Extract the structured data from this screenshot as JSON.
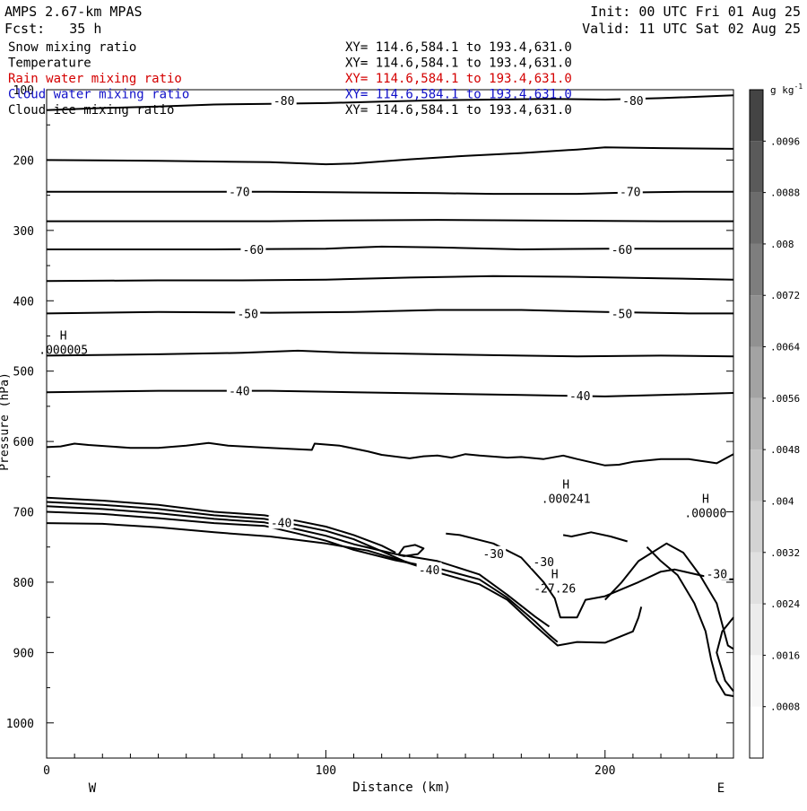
{
  "header": {
    "model": "AMPS 2.67-km MPAS",
    "forecast": "Fcst:   35 h",
    "init": "Init: 00 UTC Fri 01 Aug 25",
    "valid": "Valid: 11 UTC Sat 02 Aug 25"
  },
  "legend": {
    "fields": [
      {
        "name": "Snow mixing ratio",
        "xy": "XY= 114.6,584.1 to 193.4,631.0",
        "color": "#000000"
      },
      {
        "name": "Temperature",
        "xy": "XY= 114.6,584.1 to 193.4,631.0",
        "color": "#000000"
      },
      {
        "name": "Rain water mixing ratio",
        "xy": "XY= 114.6,584.1 to 193.4,631.0",
        "color": "#d40000"
      },
      {
        "name": "Cloud water mixing ratio",
        "xy": "XY= 114.6,584.1 to 193.4,631.0",
        "color": "#1010c8"
      },
      {
        "name": "Cloud ice mixing ratio",
        "xy": "XY= 114.6,584.1 to 193.4,631.0",
        "color": "#000000"
      }
    ]
  },
  "colorbar": {
    "unit_base": "g kg",
    "unit_exp": "-1",
    "labels": [
      ".0096",
      ".0088",
      ".008",
      ".0072",
      ".0064",
      ".0056",
      ".0048",
      ".004",
      ".0032",
      ".0024",
      ".0016",
      ".0008"
    ],
    "values": [
      0.0096,
      0.0088,
      0.008,
      0.0072,
      0.0064,
      0.0056,
      0.0048,
      0.004,
      0.0032,
      0.0024,
      0.0016,
      0.0008
    ],
    "range": [
      0,
      0.0104
    ],
    "bin_colors": [
      "#ffffff",
      "#f7f7f7",
      "#ececec",
      "#e0e0e0",
      "#d3d3d3",
      "#c5c5c5",
      "#b5b5b5",
      "#a3a3a3",
      "#919191",
      "#7e7e7e",
      "#6c6c6c",
      "#5a5a5a",
      "#444444"
    ]
  },
  "chart_data": {
    "type": "contour",
    "xlabel": "Distance (km)",
    "ylabel": "Pressure (hPa)",
    "xlim": [
      0,
      246
    ],
    "ylim": [
      1050,
      100
    ],
    "xticks": [
      0,
      100,
      200
    ],
    "yticks": [
      100,
      200,
      300,
      400,
      500,
      600,
      700,
      800,
      900,
      1000
    ],
    "x_end_labels": {
      "left": "W",
      "right": "E"
    },
    "contour_labels": [
      {
        "text": "-80",
        "x": 85,
        "p": 115
      },
      {
        "text": "-80",
        "x": 210,
        "p": 115
      },
      {
        "text": "-70",
        "x": 69,
        "p": 245
      },
      {
        "text": "-70",
        "x": 209,
        "p": 245
      },
      {
        "text": "-60",
        "x": 74,
        "p": 327
      },
      {
        "text": "-60",
        "x": 206,
        "p": 327
      },
      {
        "text": "-50",
        "x": 72,
        "p": 418
      },
      {
        "text": "-50",
        "x": 206,
        "p": 418
      },
      {
        "text": "-40",
        "x": 69,
        "p": 528
      },
      {
        "text": "-40",
        "x": 191,
        "p": 535
      },
      {
        "text": "-40",
        "x": 84,
        "p": 715
      },
      {
        "text": "-40",
        "x": 137,
        "p": 782
      },
      {
        "text": "-30",
        "x": 160,
        "p": 759
      },
      {
        "text": "-30",
        "x": 178,
        "p": 771
      },
      {
        "text": "-30",
        "x": 240,
        "p": 788
      }
    ],
    "extrema": [
      {
        "marker": "H",
        "value": ".000005",
        "x": 6,
        "p": 478
      },
      {
        "marker": "H",
        "value": ".000241",
        "x": 186,
        "p": 690
      },
      {
        "marker": "H",
        "value": "-27.26",
        "x": 182,
        "p": 817
      },
      {
        "marker": "H",
        "value": ".00000",
        "x": 236,
        "p": 710
      }
    ],
    "isotherms": [
      {
        "level": -80,
        "points": [
          [
            0,
            129
          ],
          [
            20,
            126
          ],
          [
            40,
            124
          ],
          [
            60,
            121
          ],
          [
            80,
            120
          ],
          [
            100,
            119
          ],
          [
            120,
            117
          ],
          [
            140,
            115
          ],
          [
            160,
            114
          ],
          [
            180,
            113
          ],
          [
            200,
            114
          ],
          [
            220,
            112
          ],
          [
            246,
            108
          ]
        ]
      },
      {
        "level": -75,
        "points": [
          [
            0,
            200
          ],
          [
            40,
            201
          ],
          [
            80,
            203
          ],
          [
            100,
            206
          ],
          [
            110,
            205
          ],
          [
            130,
            199
          ],
          [
            150,
            194
          ],
          [
            170,
            190
          ],
          [
            190,
            185
          ],
          [
            200,
            182
          ],
          [
            220,
            183
          ],
          [
            246,
            184
          ]
        ]
      },
      {
        "level": -70,
        "points": [
          [
            0,
            245
          ],
          [
            40,
            245
          ],
          [
            80,
            245
          ],
          [
            110,
            246
          ],
          [
            140,
            247
          ],
          [
            160,
            248
          ],
          [
            190,
            248
          ],
          [
            210,
            246
          ],
          [
            230,
            245
          ],
          [
            246,
            245
          ]
        ]
      },
      {
        "level": -65,
        "points": [
          [
            0,
            287
          ],
          [
            40,
            287
          ],
          [
            80,
            287
          ],
          [
            100,
            286
          ],
          [
            140,
            285
          ],
          [
            180,
            286
          ],
          [
            220,
            287
          ],
          [
            246,
            287
          ]
        ]
      },
      {
        "level": -60,
        "points": [
          [
            0,
            327
          ],
          [
            60,
            327
          ],
          [
            100,
            326
          ],
          [
            120,
            323
          ],
          [
            140,
            324
          ],
          [
            170,
            327
          ],
          [
            200,
            326
          ],
          [
            246,
            326
          ]
        ]
      },
      {
        "level": -55,
        "points": [
          [
            0,
            372
          ],
          [
            40,
            371
          ],
          [
            70,
            371
          ],
          [
            100,
            370
          ],
          [
            130,
            367
          ],
          [
            160,
            365
          ],
          [
            190,
            366
          ],
          [
            220,
            368
          ],
          [
            246,
            370
          ]
        ]
      },
      {
        "level": -50,
        "points": [
          [
            0,
            418
          ],
          [
            40,
            416
          ],
          [
            80,
            417
          ],
          [
            110,
            416
          ],
          [
            140,
            413
          ],
          [
            170,
            413
          ],
          [
            200,
            416
          ],
          [
            230,
            418
          ],
          [
            246,
            418
          ]
        ]
      },
      {
        "level": -45,
        "points": [
          [
            0,
            478
          ],
          [
            40,
            476
          ],
          [
            70,
            474
          ],
          [
            90,
            471
          ],
          [
            110,
            474
          ],
          [
            140,
            476
          ],
          [
            170,
            478
          ],
          [
            190,
            479
          ],
          [
            220,
            478
          ],
          [
            246,
            479
          ]
        ]
      },
      {
        "level": -40,
        "points": [
          [
            0,
            530
          ],
          [
            40,
            528
          ],
          [
            80,
            528
          ],
          [
            110,
            530
          ],
          [
            140,
            532
          ],
          [
            170,
            534
          ],
          [
            200,
            536
          ],
          [
            220,
            534
          ],
          [
            246,
            531
          ]
        ]
      },
      {
        "level": -35,
        "points": [
          [
            0,
            608
          ],
          [
            5,
            607
          ],
          [
            10,
            603
          ],
          [
            15,
            605
          ],
          [
            30,
            609
          ],
          [
            40,
            609
          ],
          [
            50,
            606
          ],
          [
            58,
            602
          ],
          [
            65,
            606
          ],
          [
            80,
            609
          ],
          [
            95,
            612
          ],
          [
            96,
            603
          ],
          [
            105,
            606
          ],
          [
            115,
            614
          ],
          [
            120,
            619
          ],
          [
            130,
            624
          ],
          [
            135,
            621
          ],
          [
            140,
            620
          ],
          [
            145,
            623
          ],
          [
            150,
            618
          ],
          [
            155,
            620
          ],
          [
            165,
            623
          ],
          [
            170,
            622
          ],
          [
            178,
            625
          ],
          [
            185,
            620
          ],
          [
            190,
            625
          ],
          [
            200,
            634
          ],
          [
            205,
            633
          ],
          [
            210,
            629
          ],
          [
            220,
            625
          ],
          [
            230,
            625
          ],
          [
            240,
            631
          ],
          [
            246,
            618
          ]
        ]
      },
      {
        "level": -40,
        "points": [
          [
            0,
            680
          ],
          [
            20,
            684
          ],
          [
            40,
            690
          ],
          [
            60,
            700
          ],
          [
            78,
            705
          ],
          [
            90,
            713
          ],
          [
            100,
            721
          ],
          [
            110,
            733
          ],
          [
            120,
            748
          ],
          [
            125,
            758
          ]
        ]
      },
      {
        "level": -40,
        "points": [
          [
            0,
            686
          ],
          [
            20,
            690
          ],
          [
            40,
            696
          ],
          [
            60,
            705
          ],
          [
            78,
            710
          ],
          [
            90,
            719
          ],
          [
            100,
            727
          ],
          [
            110,
            739
          ],
          [
            120,
            756
          ],
          [
            128,
            770
          ],
          [
            135,
            779
          ]
        ]
      },
      {
        "level": -40,
        "points": [
          [
            0,
            692
          ],
          [
            20,
            696
          ],
          [
            40,
            702
          ],
          [
            60,
            710
          ],
          [
            78,
            715
          ],
          [
            90,
            725
          ],
          [
            100,
            734
          ],
          [
            110,
            746
          ],
          [
            125,
            760
          ],
          [
            140,
            770
          ],
          [
            155,
            789
          ],
          [
            165,
            818
          ],
          [
            175,
            849
          ],
          [
            180,
            863
          ]
        ]
      },
      {
        "level": -40,
        "points": [
          [
            0,
            700
          ],
          [
            20,
            703
          ],
          [
            40,
            709
          ],
          [
            60,
            716
          ],
          [
            78,
            720
          ],
          [
            90,
            731
          ],
          [
            100,
            741
          ],
          [
            110,
            754
          ],
          [
            125,
            769
          ],
          [
            140,
            780
          ],
          [
            155,
            796
          ],
          [
            165,
            822
          ],
          [
            175,
            856
          ],
          [
            180,
            875
          ],
          [
            183,
            885
          ]
        ]
      },
      {
        "level": -35,
        "points": [
          [
            0,
            716
          ],
          [
            20,
            717
          ],
          [
            40,
            722
          ],
          [
            60,
            729
          ],
          [
            80,
            735
          ],
          [
            100,
            745
          ],
          [
            115,
            755
          ],
          [
            125,
            767
          ],
          [
            140,
            786
          ],
          [
            155,
            803
          ],
          [
            165,
            825
          ],
          [
            175,
            862
          ],
          [
            183,
            890
          ],
          [
            190,
            885
          ],
          [
            200,
            886
          ],
          [
            210,
            870
          ],
          [
            212,
            850
          ],
          [
            213,
            835
          ]
        ]
      },
      {
        "level": -30,
        "points": [
          [
            143,
            731
          ],
          [
            148,
            733
          ],
          [
            160,
            745
          ],
          [
            170,
            765
          ],
          [
            178,
            800
          ],
          [
            182,
            823
          ],
          [
            184,
            850
          ],
          [
            190,
            850
          ],
          [
            193,
            825
          ],
          [
            200,
            820
          ],
          [
            212,
            800
          ],
          [
            220,
            785
          ],
          [
            225,
            782
          ],
          [
            235,
            791
          ],
          [
            242,
            796
          ],
          [
            246,
            796
          ]
        ]
      },
      {
        "level": -25,
        "points": [
          [
            185,
            733
          ],
          [
            188,
            735
          ],
          [
            195,
            729
          ],
          [
            202,
            735
          ],
          [
            208,
            742
          ]
        ]
      },
      {
        "level": -30,
        "points": [
          [
            200,
            825
          ],
          [
            206,
            800
          ],
          [
            212,
            770
          ],
          [
            222,
            745
          ],
          [
            228,
            758
          ],
          [
            234,
            790
          ],
          [
            240,
            830
          ],
          [
            242,
            860
          ],
          [
            244,
            890
          ],
          [
            246,
            895
          ]
        ]
      },
      {
        "level": -30,
        "points": [
          [
            215,
            750
          ],
          [
            220,
            770
          ],
          [
            226,
            790
          ],
          [
            232,
            830
          ],
          [
            236,
            870
          ],
          [
            238,
            910
          ],
          [
            240,
            940
          ],
          [
            243,
            960
          ],
          [
            246,
            962
          ]
        ]
      },
      {
        "level": -30,
        "points": [
          [
            246,
            850
          ],
          [
            242,
            870
          ],
          [
            240,
            900
          ],
          [
            243,
            940
          ],
          [
            246,
            955
          ]
        ]
      },
      {
        "level": -20,
        "points": [
          [
            126,
            761
          ],
          [
            128,
            750
          ],
          [
            132,
            747
          ],
          [
            135,
            752
          ],
          [
            133,
            760
          ],
          [
            128,
            763
          ],
          [
            126,
            761
          ]
        ]
      }
    ]
  }
}
